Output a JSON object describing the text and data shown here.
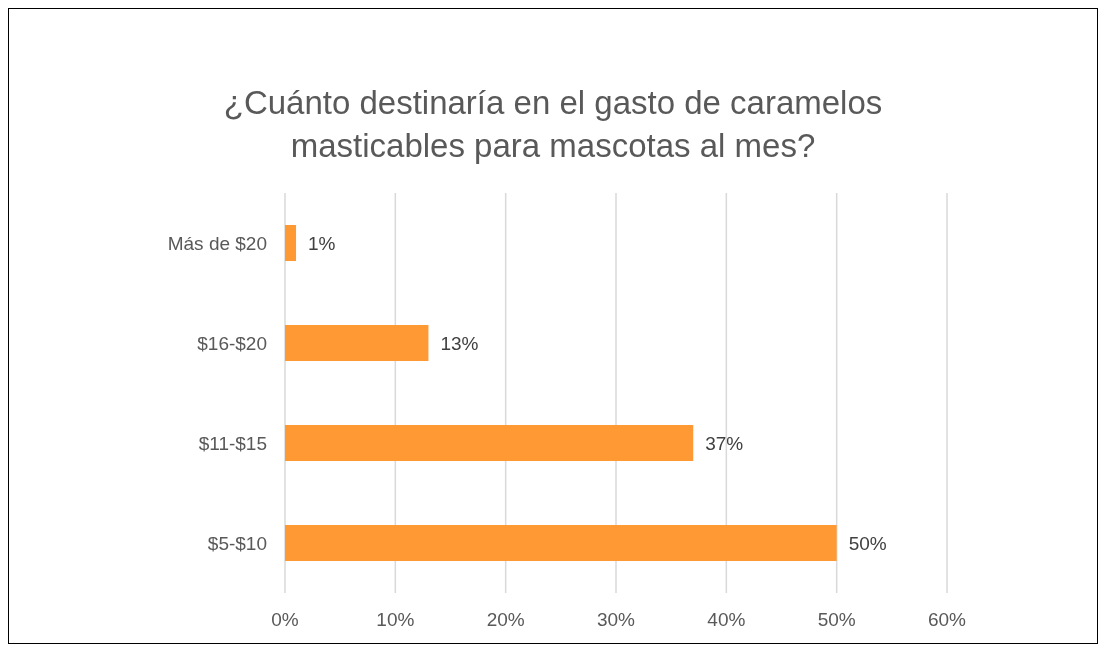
{
  "chart_data": {
    "type": "bar",
    "orientation": "horizontal",
    "title": "¿Cuánto destinaría en el gasto de caramelos masticables para mascotas al mes?",
    "categories": [
      "Más de $20",
      "$16-$20",
      "$11-$15",
      "$5-$10"
    ],
    "values": [
      1,
      13,
      37,
      50
    ],
    "value_labels": [
      "1%",
      "13%",
      "37%",
      "50%"
    ],
    "color": "#ff9933",
    "xlim": [
      0,
      60
    ],
    "xticks": [
      {
        "value": 0,
        "label": "0%"
      },
      {
        "value": 10,
        "label": "10%"
      },
      {
        "value": 20,
        "label": "20%"
      },
      {
        "value": 30,
        "label": "30%"
      },
      {
        "value": 40,
        "label": "40%"
      },
      {
        "value": 50,
        "label": "50%"
      },
      {
        "value": 60,
        "label": "60%"
      }
    ],
    "grid": "x",
    "legend": false
  }
}
